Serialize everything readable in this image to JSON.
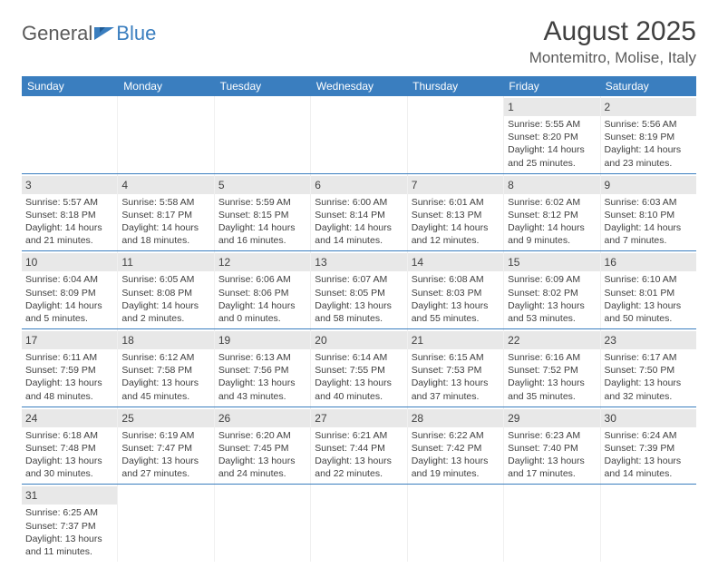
{
  "logo": {
    "text_general": "General",
    "text_blue": "Blue"
  },
  "title": "August 2025",
  "location": "Montemitro, Molise, Italy",
  "colors": {
    "header_bg": "#3a7ebf",
    "header_text": "#ffffff",
    "daynum_band": "#e8e8e8",
    "text": "#404040",
    "row_border": "#3a7ebf"
  },
  "typography": {
    "title_fontsize": 30,
    "location_fontsize": 17,
    "dow_fontsize": 12,
    "body_fontsize": 10.5
  },
  "days_of_week": [
    "Sunday",
    "Monday",
    "Tuesday",
    "Wednesday",
    "Thursday",
    "Friday",
    "Saturday"
  ],
  "weeks": [
    [
      null,
      null,
      null,
      null,
      null,
      {
        "n": "1",
        "sunrise": "Sunrise: 5:55 AM",
        "sunset": "Sunset: 8:20 PM",
        "d1": "Daylight: 14 hours",
        "d2": "and 25 minutes."
      },
      {
        "n": "2",
        "sunrise": "Sunrise: 5:56 AM",
        "sunset": "Sunset: 8:19 PM",
        "d1": "Daylight: 14 hours",
        "d2": "and 23 minutes."
      }
    ],
    [
      {
        "n": "3",
        "sunrise": "Sunrise: 5:57 AM",
        "sunset": "Sunset: 8:18 PM",
        "d1": "Daylight: 14 hours",
        "d2": "and 21 minutes."
      },
      {
        "n": "4",
        "sunrise": "Sunrise: 5:58 AM",
        "sunset": "Sunset: 8:17 PM",
        "d1": "Daylight: 14 hours",
        "d2": "and 18 minutes."
      },
      {
        "n": "5",
        "sunrise": "Sunrise: 5:59 AM",
        "sunset": "Sunset: 8:15 PM",
        "d1": "Daylight: 14 hours",
        "d2": "and 16 minutes."
      },
      {
        "n": "6",
        "sunrise": "Sunrise: 6:00 AM",
        "sunset": "Sunset: 8:14 PM",
        "d1": "Daylight: 14 hours",
        "d2": "and 14 minutes."
      },
      {
        "n": "7",
        "sunrise": "Sunrise: 6:01 AM",
        "sunset": "Sunset: 8:13 PM",
        "d1": "Daylight: 14 hours",
        "d2": "and 12 minutes."
      },
      {
        "n": "8",
        "sunrise": "Sunrise: 6:02 AM",
        "sunset": "Sunset: 8:12 PM",
        "d1": "Daylight: 14 hours",
        "d2": "and 9 minutes."
      },
      {
        "n": "9",
        "sunrise": "Sunrise: 6:03 AM",
        "sunset": "Sunset: 8:10 PM",
        "d1": "Daylight: 14 hours",
        "d2": "and 7 minutes."
      }
    ],
    [
      {
        "n": "10",
        "sunrise": "Sunrise: 6:04 AM",
        "sunset": "Sunset: 8:09 PM",
        "d1": "Daylight: 14 hours",
        "d2": "and 5 minutes."
      },
      {
        "n": "11",
        "sunrise": "Sunrise: 6:05 AM",
        "sunset": "Sunset: 8:08 PM",
        "d1": "Daylight: 14 hours",
        "d2": "and 2 minutes."
      },
      {
        "n": "12",
        "sunrise": "Sunrise: 6:06 AM",
        "sunset": "Sunset: 8:06 PM",
        "d1": "Daylight: 14 hours",
        "d2": "and 0 minutes."
      },
      {
        "n": "13",
        "sunrise": "Sunrise: 6:07 AM",
        "sunset": "Sunset: 8:05 PM",
        "d1": "Daylight: 13 hours",
        "d2": "and 58 minutes."
      },
      {
        "n": "14",
        "sunrise": "Sunrise: 6:08 AM",
        "sunset": "Sunset: 8:03 PM",
        "d1": "Daylight: 13 hours",
        "d2": "and 55 minutes."
      },
      {
        "n": "15",
        "sunrise": "Sunrise: 6:09 AM",
        "sunset": "Sunset: 8:02 PM",
        "d1": "Daylight: 13 hours",
        "d2": "and 53 minutes."
      },
      {
        "n": "16",
        "sunrise": "Sunrise: 6:10 AM",
        "sunset": "Sunset: 8:01 PM",
        "d1": "Daylight: 13 hours",
        "d2": "and 50 minutes."
      }
    ],
    [
      {
        "n": "17",
        "sunrise": "Sunrise: 6:11 AM",
        "sunset": "Sunset: 7:59 PM",
        "d1": "Daylight: 13 hours",
        "d2": "and 48 minutes."
      },
      {
        "n": "18",
        "sunrise": "Sunrise: 6:12 AM",
        "sunset": "Sunset: 7:58 PM",
        "d1": "Daylight: 13 hours",
        "d2": "and 45 minutes."
      },
      {
        "n": "19",
        "sunrise": "Sunrise: 6:13 AM",
        "sunset": "Sunset: 7:56 PM",
        "d1": "Daylight: 13 hours",
        "d2": "and 43 minutes."
      },
      {
        "n": "20",
        "sunrise": "Sunrise: 6:14 AM",
        "sunset": "Sunset: 7:55 PM",
        "d1": "Daylight: 13 hours",
        "d2": "and 40 minutes."
      },
      {
        "n": "21",
        "sunrise": "Sunrise: 6:15 AM",
        "sunset": "Sunset: 7:53 PM",
        "d1": "Daylight: 13 hours",
        "d2": "and 37 minutes."
      },
      {
        "n": "22",
        "sunrise": "Sunrise: 6:16 AM",
        "sunset": "Sunset: 7:52 PM",
        "d1": "Daylight: 13 hours",
        "d2": "and 35 minutes."
      },
      {
        "n": "23",
        "sunrise": "Sunrise: 6:17 AM",
        "sunset": "Sunset: 7:50 PM",
        "d1": "Daylight: 13 hours",
        "d2": "and 32 minutes."
      }
    ],
    [
      {
        "n": "24",
        "sunrise": "Sunrise: 6:18 AM",
        "sunset": "Sunset: 7:48 PM",
        "d1": "Daylight: 13 hours",
        "d2": "and 30 minutes."
      },
      {
        "n": "25",
        "sunrise": "Sunrise: 6:19 AM",
        "sunset": "Sunset: 7:47 PM",
        "d1": "Daylight: 13 hours",
        "d2": "and 27 minutes."
      },
      {
        "n": "26",
        "sunrise": "Sunrise: 6:20 AM",
        "sunset": "Sunset: 7:45 PM",
        "d1": "Daylight: 13 hours",
        "d2": "and 24 minutes."
      },
      {
        "n": "27",
        "sunrise": "Sunrise: 6:21 AM",
        "sunset": "Sunset: 7:44 PM",
        "d1": "Daylight: 13 hours",
        "d2": "and 22 minutes."
      },
      {
        "n": "28",
        "sunrise": "Sunrise: 6:22 AM",
        "sunset": "Sunset: 7:42 PM",
        "d1": "Daylight: 13 hours",
        "d2": "and 19 minutes."
      },
      {
        "n": "29",
        "sunrise": "Sunrise: 6:23 AM",
        "sunset": "Sunset: 7:40 PM",
        "d1": "Daylight: 13 hours",
        "d2": "and 17 minutes."
      },
      {
        "n": "30",
        "sunrise": "Sunrise: 6:24 AM",
        "sunset": "Sunset: 7:39 PM",
        "d1": "Daylight: 13 hours",
        "d2": "and 14 minutes."
      }
    ],
    [
      {
        "n": "31",
        "sunrise": "Sunrise: 6:25 AM",
        "sunset": "Sunset: 7:37 PM",
        "d1": "Daylight: 13 hours",
        "d2": "and 11 minutes."
      },
      null,
      null,
      null,
      null,
      null,
      null
    ]
  ]
}
